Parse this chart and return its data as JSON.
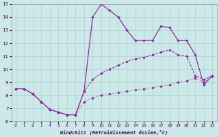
{
  "xlabel": "Windchill (Refroidissement éolien,°C)",
  "bg_color": "#cce8e8",
  "grid_color": "#b0d0d0",
  "line_color": "#882299",
  "xlim": [
    -0.5,
    23.5
  ],
  "ylim": [
    6,
    15
  ],
  "xticks": [
    0,
    1,
    2,
    3,
    4,
    5,
    6,
    7,
    8,
    9,
    10,
    11,
    12,
    13,
    14,
    15,
    16,
    17,
    18,
    19,
    20,
    21,
    22,
    23
  ],
  "yticks": [
    6,
    7,
    8,
    9,
    10,
    11,
    12,
    13,
    14,
    15
  ],
  "line1_x": [
    0,
    1,
    2,
    3,
    4,
    5,
    6,
    7,
    8,
    9,
    10,
    11,
    12,
    13,
    14,
    15,
    16,
    17,
    18,
    19,
    20,
    21,
    22,
    23
  ],
  "line1_y": [
    8.5,
    8.5,
    8.1,
    7.5,
    6.9,
    6.7,
    6.5,
    6.5,
    7.5,
    7.8,
    8.0,
    8.1,
    8.2,
    8.3,
    8.4,
    8.5,
    8.6,
    8.7,
    8.8,
    9.0,
    9.1,
    9.3,
    9.0,
    9.5
  ],
  "line2_x": [
    0,
    1,
    2,
    3,
    4,
    5,
    6,
    7,
    8,
    9,
    10,
    11,
    12,
    13,
    14,
    15,
    16,
    17,
    18,
    19,
    20,
    21,
    22,
    23
  ],
  "line2_y": [
    8.5,
    8.5,
    8.1,
    7.5,
    6.9,
    6.7,
    6.5,
    6.5,
    8.3,
    9.2,
    9.7,
    10.0,
    10.3,
    10.6,
    10.8,
    10.9,
    11.1,
    11.3,
    11.5,
    11.1,
    11.0,
    9.5,
    9.2,
    9.5
  ],
  "line3_x": [
    0,
    1,
    2,
    3,
    4,
    5,
    6,
    7,
    8,
    9,
    10,
    11,
    12,
    13,
    14,
    15,
    16,
    17,
    18,
    19,
    20,
    21,
    22,
    23
  ],
  "line3_y": [
    8.5,
    8.5,
    8.1,
    7.5,
    6.9,
    6.7,
    6.5,
    6.5,
    8.3,
    14.0,
    15.0,
    14.5,
    14.0,
    13.0,
    12.2,
    12.2,
    12.2,
    13.3,
    13.2,
    12.2,
    12.2,
    11.1,
    8.8,
    9.5
  ]
}
